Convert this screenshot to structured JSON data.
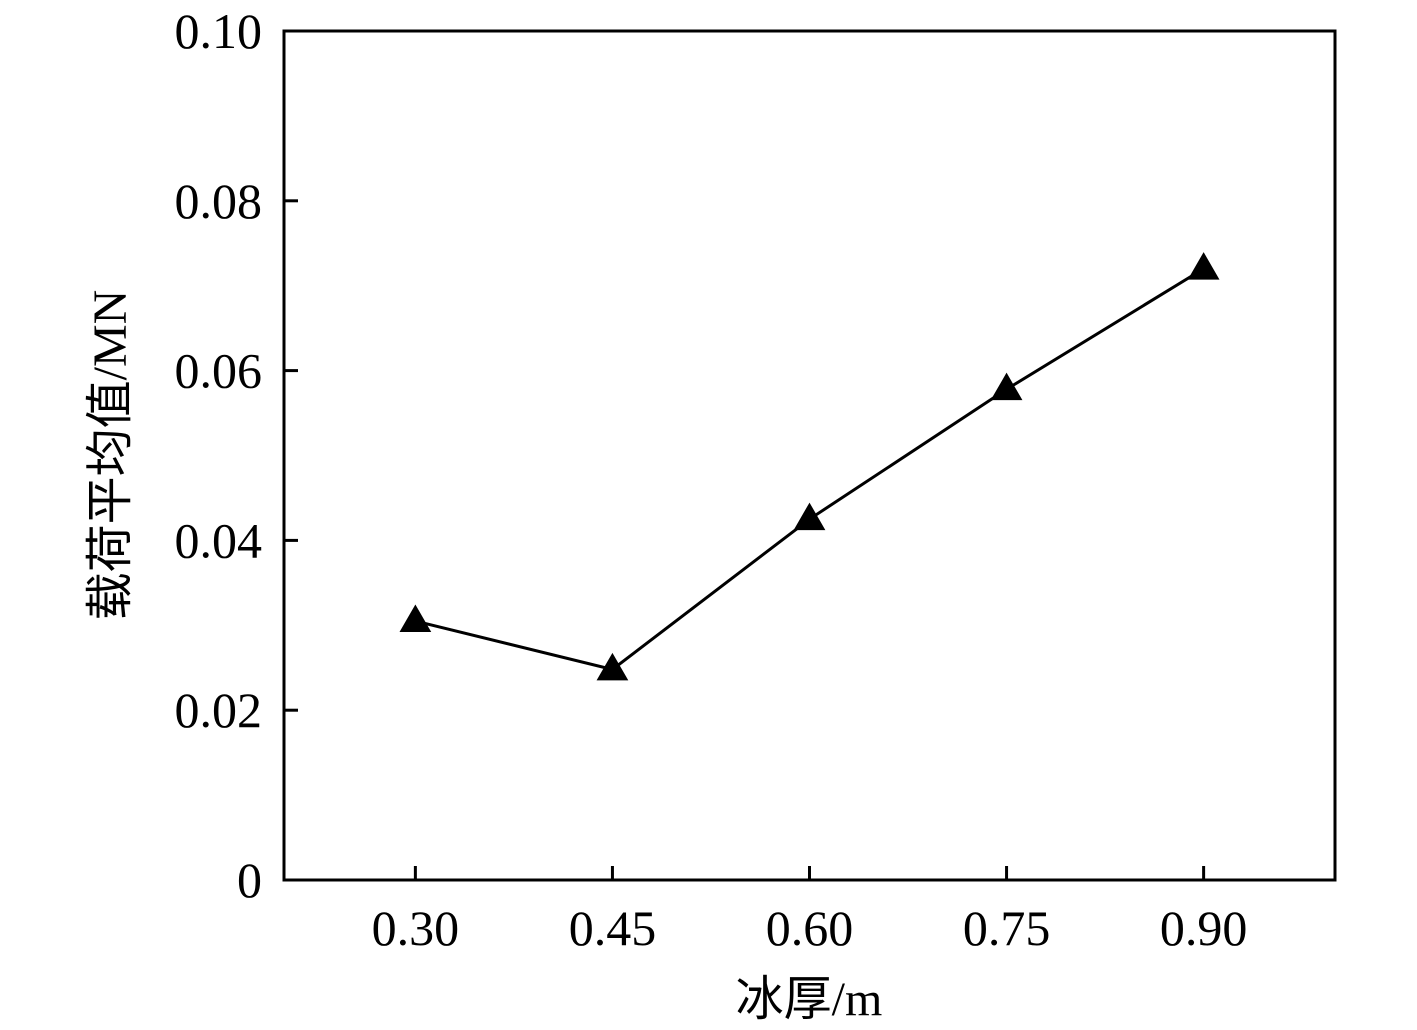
{
  "chart_data": {
    "type": "line",
    "title": "",
    "xlabel": "冰厚/m",
    "ylabel": "载荷平均值/MN",
    "x": [
      0.3,
      0.45,
      0.6,
      0.75,
      0.9
    ],
    "x_tick_labels": [
      "0.30",
      "0.45",
      "0.60",
      "0.75",
      "0.90"
    ],
    "y_ticks": [
      0,
      0.02,
      0.04,
      0.06,
      0.08,
      0.1
    ],
    "y_tick_labels": [
      "0",
      "0.02",
      "0.04",
      "0.06",
      "0.08",
      "0.10"
    ],
    "ylim": [
      0,
      0.1
    ],
    "xlim": [
      0.2,
      1.0
    ],
    "series": [
      {
        "values": [
          0.0305,
          0.0248,
          0.0425,
          0.0578,
          0.072
        ],
        "marker": "triangle",
        "color": "#000000"
      }
    ],
    "grid": false,
    "legend": "none"
  }
}
